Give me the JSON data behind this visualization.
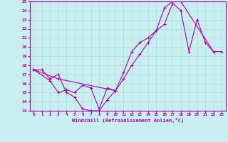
{
  "bg_color": "#c8eef0",
  "line_color": "#aa00aa",
  "grid_color": "#aadddd",
  "xlabel": "Windchill (Refroidissement éolien,°C)",
  "xlabel_color": "#aa00aa",
  "xlim": [
    -0.5,
    23.5
  ],
  "ylim": [
    13,
    25
  ],
  "xticks": [
    0,
    1,
    2,
    3,
    4,
    5,
    6,
    7,
    8,
    9,
    10,
    11,
    12,
    13,
    14,
    15,
    16,
    17,
    18,
    19,
    20,
    21,
    22,
    23
  ],
  "yticks": [
    13,
    14,
    15,
    16,
    17,
    18,
    19,
    20,
    21,
    22,
    23,
    24,
    25
  ],
  "line1_x": [
    0,
    1,
    2,
    3,
    4,
    5,
    6,
    7,
    8,
    9,
    10,
    11,
    12,
    13,
    14,
    15,
    16,
    17,
    18,
    22
  ],
  "line1_y": [
    17.5,
    17.5,
    16.5,
    17.0,
    15.0,
    14.5,
    13.2,
    13.0,
    13.0,
    14.2,
    15.2,
    17.2,
    19.5,
    20.5,
    21.0,
    21.8,
    24.3,
    25.0,
    25.0,
    19.5
  ],
  "line2_x": [
    0,
    2,
    3,
    4,
    5,
    6,
    7,
    8,
    9,
    10
  ],
  "line2_y": [
    17.5,
    16.3,
    15.0,
    15.3,
    15.0,
    15.8,
    15.5,
    13.2,
    15.5,
    15.2
  ],
  "line3_x": [
    0,
    3,
    10,
    11,
    12,
    13,
    14,
    15,
    16,
    17,
    18,
    19,
    20,
    21,
    22,
    23
  ],
  "line3_y": [
    17.5,
    16.5,
    15.2,
    16.5,
    18.0,
    19.2,
    20.5,
    21.8,
    22.5,
    24.8,
    24.0,
    19.5,
    23.0,
    20.5,
    19.5,
    19.5
  ]
}
